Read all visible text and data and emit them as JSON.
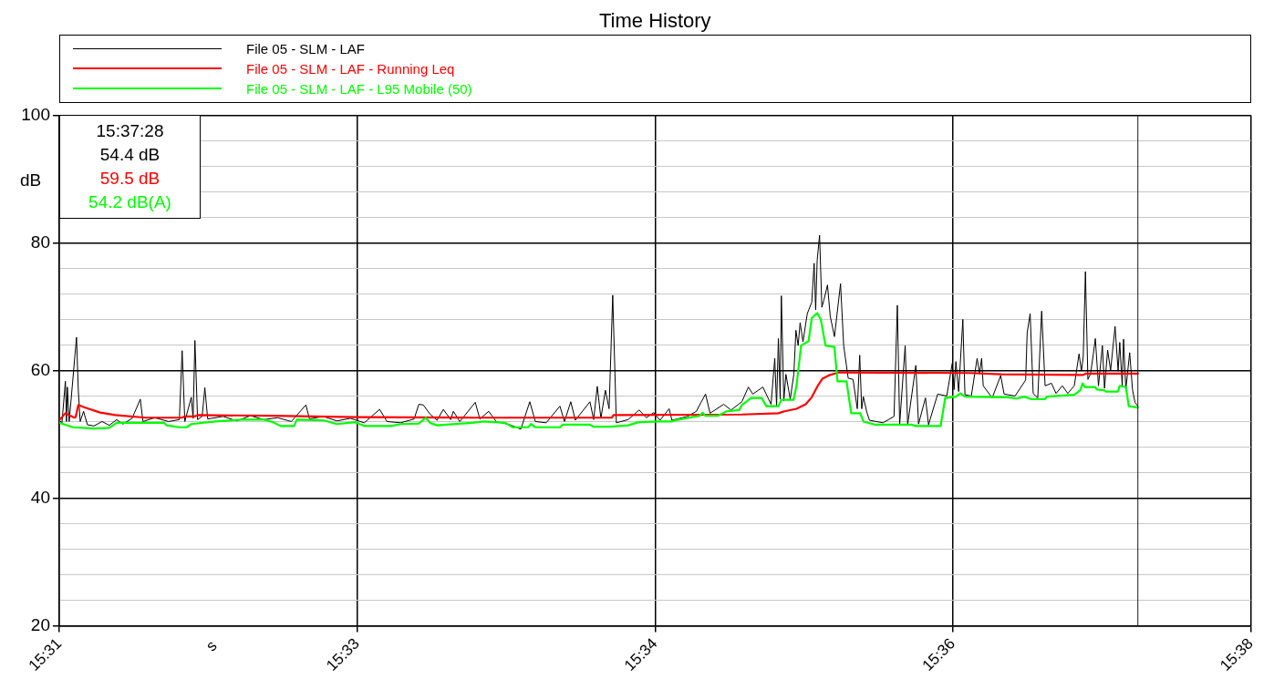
{
  "chart_data": {
    "type": "line",
    "title": "Time History",
    "xlabel": "s",
    "ylabel": "dB",
    "xlim": [
      15.51129,
      15.63629
    ],
    "xticks": [
      {
        "value": 15.51129,
        "label": "15:31"
      },
      {
        "value": 15.54254,
        "label": "15:33"
      },
      {
        "value": 15.57379,
        "label": "15:34"
      },
      {
        "value": 15.60504,
        "label": "15:36"
      },
      {
        "value": 15.63629,
        "label": "15:38"
      }
    ],
    "ylim": [
      20,
      100
    ],
    "yticks": [
      20,
      {
        "value": 24,
        "label": null
      },
      {
        "value": 28,
        "label": null
      },
      {
        "value": 32,
        "label": null
      },
      {
        "value": 36,
        "label": null
      },
      40,
      {
        "value": 44,
        "label": null
      },
      {
        "value": 48,
        "label": null
      },
      {
        "value": 52,
        "label": null
      },
      {
        "value": 56,
        "label": null
      },
      60,
      {
        "value": 64,
        "label": null
      },
      {
        "value": 68,
        "label": null
      },
      {
        "value": 72,
        "label": null
      },
      {
        "value": 76,
        "label": null
      },
      80,
      {
        "value": 84,
        "label": null
      },
      {
        "value": 88,
        "label": null
      },
      {
        "value": 92,
        "label": null
      },
      {
        "value": 96,
        "label": null
      },
      100
    ],
    "grid": true,
    "legend": "top",
    "marker": "none",
    "line_style": "solid",
    "ref_lines": [
      {
        "axis": "x",
        "value": 15.62444
      }
    ],
    "annotations": [
      "15:37:28",
      "54.4 dB",
      "59.5 dB",
      "54.2 dB(A)"
    ],
    "series": [
      {
        "name": "File 05 - SLM - LAF",
        "color": "#000000",
        "x": [
          15.51129,
          15.51157,
          15.51193,
          15.51205,
          15.51214,
          15.51233,
          15.5131,
          15.51329,
          15.51348,
          15.51384,
          15.51424,
          15.51492,
          15.51578,
          15.51654,
          15.51731,
          15.51797,
          15.51893,
          15.51979,
          15.52007,
          15.52131,
          15.52275,
          15.52389,
          15.52418,
          15.52446,
          15.52514,
          15.52533,
          15.52552,
          15.5258,
          15.52628,
          15.52656,
          15.52686,
          15.52848,
          15.52991,
          15.53135,
          15.53277,
          15.5342,
          15.53563,
          15.53716,
          15.53754,
          15.53898,
          15.54041,
          15.54184,
          15.54328,
          15.5449,
          15.54567,
          15.5471,
          15.54852,
          15.54901,
          15.54948,
          15.55016,
          15.55092,
          15.55158,
          15.55235,
          15.55263,
          15.55331,
          15.55493,
          15.55541,
          15.55635,
          15.55712,
          15.55856,
          15.55971,
          15.56065,
          15.56123,
          15.56237,
          15.56381,
          15.56429,
          15.56495,
          15.56543,
          15.56696,
          15.56735,
          15.56773,
          15.56811,
          15.56858,
          15.56897,
          15.56935,
          15.56973,
          15.57097,
          15.57212,
          15.57288,
          15.57365,
          15.57431,
          15.57527,
          15.57556,
          15.57718,
          15.57813,
          15.57861,
          15.57909,
          15.57956,
          15.58099,
          15.58176,
          15.5829,
          15.58358,
          15.58405,
          15.5851,
          15.58596,
          15.58635,
          15.58654,
          15.58673,
          15.58692,
          15.58704,
          15.5873,
          15.58752,
          15.58797,
          15.58835,
          15.58857,
          15.5888,
          15.58901,
          15.58931,
          15.58976,
          15.59023,
          15.59048,
          15.59064,
          15.5908,
          15.59105,
          15.59129,
          15.5915,
          15.59188,
          15.59217,
          15.59261,
          15.59325,
          15.59358,
          15.59405,
          15.59456,
          15.59501,
          15.59526,
          15.59547,
          15.59564,
          15.596,
          15.59628,
          15.59771,
          15.59886,
          15.59921,
          15.59945,
          15.60003,
          15.60029,
          15.60115,
          15.60143,
          15.60216,
          15.60248,
          15.60344,
          15.60439,
          15.60497,
          15.60516,
          15.60535,
          15.60564,
          15.60608,
          15.6063,
          15.60697,
          15.60758,
          15.60783,
          15.60805,
          15.60822,
          15.60916,
          15.61005,
          15.61041,
          15.61156,
          15.61267,
          15.61283,
          15.61314,
          15.61346,
          15.61394,
          15.61435,
          15.61471,
          15.61537,
          15.61586,
          15.61652,
          15.61709,
          15.61777,
          15.61827,
          15.61852,
          15.61871,
          15.61894,
          15.6192,
          15.61948,
          15.61977,
          15.61998,
          15.62031,
          15.62072,
          15.62094,
          15.62127,
          15.62158,
          15.62205,
          15.62237,
          15.62254,
          15.6228,
          15.62294,
          15.62318,
          15.62358,
          15.62388,
          15.62414,
          15.62444
        ],
        "values": [
          52.2,
          51.8,
          58.3,
          52.0,
          57.4,
          52.0,
          65.2,
          56.8,
          52.0,
          53.6,
          51.5,
          51.3,
          52.0,
          51.4,
          52.3,
          51.6,
          52.5,
          55.5,
          52.0,
          52.6,
          52.0,
          52.3,
          63.1,
          52.0,
          55.8,
          52.5,
          64.7,
          52.3,
          52.8,
          57.3,
          52.4,
          52.8,
          52.1,
          52.9,
          52.3,
          52.6,
          52.0,
          54.6,
          52.4,
          52.8,
          52.1,
          52.5,
          51.8,
          53.9,
          52.0,
          51.8,
          52.4,
          54.7,
          54.6,
          53.2,
          52.2,
          53.9,
          52.3,
          53.6,
          52.0,
          55.0,
          52.4,
          53.6,
          52.0,
          51.5,
          50.8,
          55.1,
          52.0,
          51.8,
          54.4,
          52.0,
          55.1,
          52.2,
          55.1,
          52.3,
          57.5,
          52.5,
          56.9,
          54.0,
          71.8,
          51.8,
          52.3,
          53.8,
          52.6,
          53.4,
          52.2,
          54.0,
          52.2,
          52.8,
          53.6,
          55.0,
          56.3,
          53.3,
          54.7,
          53.8,
          55.1,
          57.4,
          56.3,
          57.4,
          54.7,
          61.9,
          54.4,
          65.0,
          55.5,
          71.7,
          55.2,
          59.4,
          55.5,
          59.4,
          66.3,
          63.9,
          67.5,
          64.5,
          68.9,
          70.7,
          76.8,
          69.5,
          77.3,
          81.2,
          69.9,
          71.0,
          73.4,
          68.5,
          65.3,
          73.6,
          63.9,
          58.8,
          58.6,
          54.0,
          62.4,
          54.0,
          55.9,
          53.5,
          52.2,
          51.8,
          52.8,
          70.2,
          51.5,
          63.9,
          51.5,
          60.8,
          51.6,
          55.7,
          51.5,
          56.3,
          56.0,
          61.1,
          57.0,
          61.4,
          56.7,
          68.0,
          56.2,
          56.0,
          61.9,
          59.5,
          61.9,
          57.6,
          55.7,
          59.2,
          56.3,
          56.0,
          58.5,
          65.9,
          68.9,
          56.4,
          55.7,
          69.3,
          57.6,
          58.0,
          56.4,
          57.6,
          56.4,
          57.6,
          62.6,
          59.9,
          62.2,
          75.5,
          58.6,
          59.5,
          62.6,
          65.0,
          57.6,
          63.9,
          57.2,
          63.2,
          60.0,
          66.9,
          59.9,
          64.4,
          57.6,
          64.9,
          57.0,
          62.8,
          57.0,
          55.0,
          54.4
        ]
      },
      {
        "name": "File 05 - SLM - LAF - Running Leq",
        "color": "#ff0000",
        "x": [
          15.51129,
          15.51193,
          15.51233,
          15.51288,
          15.51301,
          15.51329,
          15.51396,
          15.51558,
          15.51718,
          15.52035,
          15.52418,
          15.52446,
          15.52552,
          15.5258,
          15.53373,
          15.54233,
          15.55473,
          15.56925,
          15.56944,
          15.5829,
          15.58673,
          15.58737,
          15.58863,
          15.58959,
          15.59023,
          15.59086,
          15.59134,
          15.59214,
          15.5931,
          15.60678,
          15.61012,
          15.61871,
          15.61894,
          15.62444
        ],
        "values": [
          52.2,
          53.3,
          53.0,
          52.6,
          52.7,
          54.6,
          54.2,
          53.4,
          53.0,
          52.6,
          52.6,
          52.8,
          52.8,
          53.0,
          52.9,
          52.7,
          52.6,
          52.6,
          53.0,
          53.1,
          53.3,
          53.6,
          54.0,
          54.7,
          55.8,
          57.6,
          58.7,
          59.3,
          59.7,
          59.6,
          59.4,
          59.3,
          59.5,
          59.5
        ]
      },
      {
        "name": "File 05 - SLM - LAF - L95 Mobile (50)",
        "color": "#00ff00",
        "x": [
          15.51129,
          15.51272,
          15.51494,
          15.51654,
          15.51731,
          15.52227,
          15.52256,
          15.52386,
          15.52465,
          15.52514,
          15.52768,
          15.53055,
          15.53277,
          15.53373,
          15.5345,
          15.53592,
          15.53621,
          15.53898,
          15.54041,
          15.54233,
          15.54328,
          15.54614,
          15.5471,
          15.54901,
          15.54974,
          15.55018,
          15.55092,
          15.55458,
          15.55585,
          15.55808,
          15.55887,
          15.56046,
          15.56078,
          15.56123,
          15.56381,
          15.56413,
          15.56696,
          15.56731,
          15.56906,
          15.57097,
          15.57208,
          15.57431,
          15.57556,
          15.57591,
          15.57845,
          15.57878,
          15.57909,
          15.58036,
          15.58131,
          15.58262,
          15.5829,
          15.58386,
          15.58497,
          15.58546,
          15.58673,
          15.58704,
          15.58832,
          15.58863,
          15.58911,
          15.5899,
          15.59023,
          15.5908,
          15.59118,
          15.59167,
          15.59261,
          15.59293,
          15.59388,
          15.59437,
          15.59532,
          15.59564,
          15.59691,
          15.60074,
          15.60105,
          15.60375,
          15.60423,
          15.60535,
          15.60582,
          15.6063,
          15.61076,
          15.61172,
          15.6125,
          15.6133,
          15.61471,
          15.6149,
          15.61777,
          15.6184,
          15.61865,
          15.61888,
          15.61996,
          15.62015,
          15.62091,
          15.6211,
          15.62235,
          15.62254,
          15.62318,
          15.62349,
          15.62444
        ],
        "values": [
          51.8,
          51.1,
          50.9,
          51.0,
          51.8,
          51.8,
          51.4,
          51.1,
          51.1,
          51.6,
          52.0,
          52.3,
          52.3,
          51.9,
          51.3,
          51.3,
          52.3,
          52.2,
          51.6,
          51.9,
          51.3,
          51.3,
          51.6,
          51.7,
          52.6,
          51.8,
          51.4,
          51.8,
          52.0,
          51.8,
          51.1,
          51.1,
          51.6,
          51.1,
          51.1,
          51.5,
          51.5,
          51.2,
          51.2,
          51.4,
          51.9,
          52.0,
          52.0,
          52.2,
          52.9,
          53.4,
          52.9,
          52.9,
          53.6,
          53.8,
          54.6,
          55.7,
          55.7,
          54.4,
          54.4,
          55.4,
          55.4,
          57.6,
          63.9,
          64.6,
          68.2,
          69.0,
          68.0,
          63.9,
          63.7,
          58.3,
          58.3,
          53.3,
          53.3,
          52.0,
          51.5,
          51.5,
          51.3,
          51.3,
          55.7,
          55.9,
          56.4,
          55.9,
          55.8,
          55.6,
          55.9,
          55.5,
          55.5,
          55.9,
          56.2,
          56.9,
          58.0,
          57.4,
          57.4,
          57.0,
          56.9,
          56.7,
          56.7,
          57.6,
          57.4,
          54.4,
          54.2
        ]
      }
    ]
  }
}
